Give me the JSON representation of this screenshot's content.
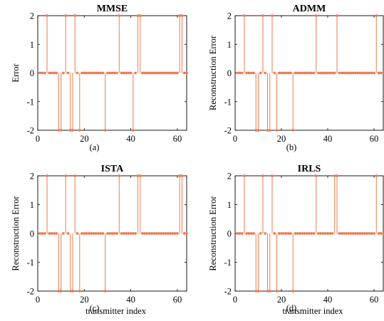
{
  "chart_data": [
    {
      "type": "stem",
      "title": "MMSE",
      "panel_label": "(a)",
      "ylabel": "Error",
      "xlabel": "",
      "xlim": [
        0,
        64
      ],
      "ylim": [
        -2,
        2
      ],
      "xticks": [
        0,
        20,
        40,
        60
      ],
      "yticks": [
        2,
        1,
        0,
        -1,
        -2
      ],
      "grid": false,
      "color": "#ef7a4f",
      "n_points": 64,
      "nonzero": [
        {
          "x": 4,
          "y": 2
        },
        {
          "x": 9,
          "y": -2
        },
        {
          "x": 10,
          "y": -2
        },
        {
          "x": 12,
          "y": 2
        },
        {
          "x": 14,
          "y": -2
        },
        {
          "x": 15,
          "y": -2
        },
        {
          "x": 16,
          "y": 2
        },
        {
          "x": 18,
          "y": -2
        },
        {
          "x": 29,
          "y": -2
        },
        {
          "x": 35,
          "y": 2
        },
        {
          "x": 41,
          "y": -2
        },
        {
          "x": 43,
          "y": 2
        },
        {
          "x": 44,
          "y": 2
        },
        {
          "x": 61,
          "y": 2
        },
        {
          "x": 62,
          "y": 2
        }
      ]
    },
    {
      "type": "stem",
      "title": "ADMM",
      "panel_label": "(b)",
      "ylabel": "Reconstruction Error",
      "xlabel": "",
      "xlim": [
        0,
        64
      ],
      "ylim": [
        -2,
        2
      ],
      "xticks": [
        0,
        20,
        40,
        60
      ],
      "yticks": [
        2,
        1,
        0,
        -1,
        -2
      ],
      "grid": false,
      "color": "#ef7a4f",
      "n_points": 64,
      "nonzero": [
        {
          "x": 4,
          "y": 2
        },
        {
          "x": 9,
          "y": -2
        },
        {
          "x": 10,
          "y": -2
        },
        {
          "x": 12,
          "y": 2
        },
        {
          "x": 14,
          "y": -2
        },
        {
          "x": 15,
          "y": -2
        },
        {
          "x": 16,
          "y": 2
        },
        {
          "x": 18,
          "y": -2
        },
        {
          "x": 25,
          "y": -2
        },
        {
          "x": 35,
          "y": 2
        },
        {
          "x": 44,
          "y": 2
        },
        {
          "x": 61,
          "y": 2
        }
      ]
    },
    {
      "type": "stem",
      "title": "ISTA",
      "panel_label": "(c)",
      "ylabel": "Reconstruction Error",
      "xlabel": "transmitter index",
      "xlim": [
        0,
        64
      ],
      "ylim": [
        -2,
        2
      ],
      "xticks": [
        0,
        20,
        40,
        60
      ],
      "yticks": [
        2,
        1,
        0,
        -1,
        -2
      ],
      "grid": false,
      "color": "#ef7a4f",
      "n_points": 64,
      "nonzero": [
        {
          "x": 4,
          "y": 2
        },
        {
          "x": 9,
          "y": -2
        },
        {
          "x": 10,
          "y": -2
        },
        {
          "x": 12,
          "y": 2
        },
        {
          "x": 14,
          "y": -2
        },
        {
          "x": 15,
          "y": -2
        },
        {
          "x": 16,
          "y": 2
        },
        {
          "x": 18,
          "y": -2
        },
        {
          "x": 29,
          "y": -2
        },
        {
          "x": 35,
          "y": 2
        },
        {
          "x": 43,
          "y": 2
        },
        {
          "x": 44,
          "y": 2
        },
        {
          "x": 61,
          "y": 2
        },
        {
          "x": 62,
          "y": 2
        }
      ]
    },
    {
      "type": "stem",
      "title": "IRLS",
      "panel_label": "(d)",
      "ylabel": "Reconstruction Error",
      "xlabel": "transmitter index",
      "xlim": [
        0,
        64
      ],
      "ylim": [
        -2,
        2
      ],
      "xticks": [
        0,
        20,
        40,
        60
      ],
      "yticks": [
        2,
        1,
        0,
        -1,
        -2
      ],
      "grid": false,
      "color": "#ef7a4f",
      "n_points": 64,
      "nonzero": [
        {
          "x": 4,
          "y": 2
        },
        {
          "x": 9,
          "y": -2
        },
        {
          "x": 10,
          "y": -2
        },
        {
          "x": 12,
          "y": 2
        },
        {
          "x": 14,
          "y": -2
        },
        {
          "x": 15,
          "y": -2
        },
        {
          "x": 16,
          "y": 2
        },
        {
          "x": 18,
          "y": -2
        },
        {
          "x": 25,
          "y": -2
        },
        {
          "x": 35,
          "y": 2
        },
        {
          "x": 43,
          "y": 2
        },
        {
          "x": 44,
          "y": 2
        },
        {
          "x": 61,
          "y": 2
        }
      ]
    }
  ]
}
